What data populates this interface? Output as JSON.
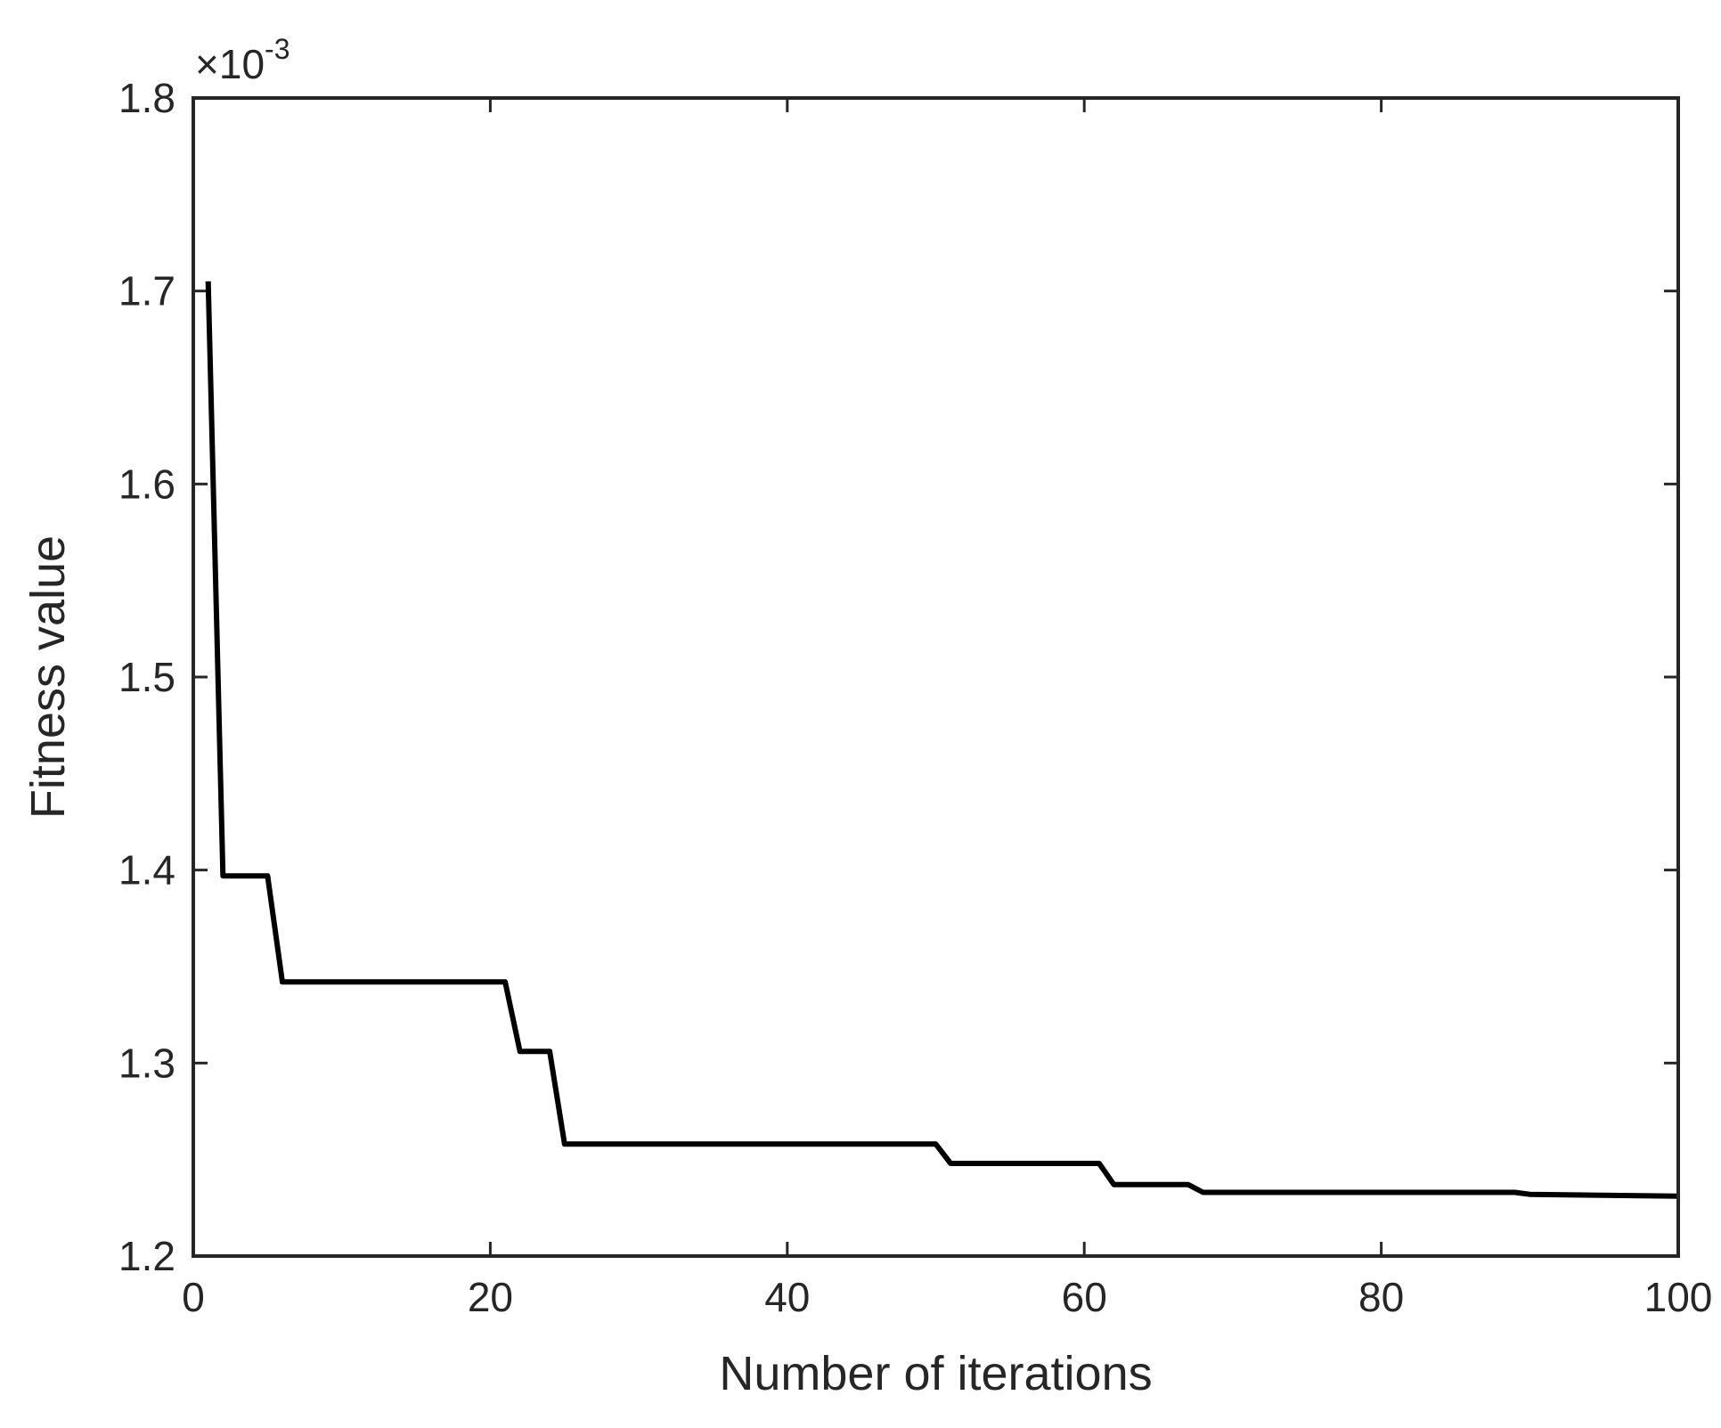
{
  "chart_data": {
    "type": "line",
    "title": "",
    "xlabel": "Number of iterations",
    "ylabel": "Fitness value",
    "xlim": [
      0,
      100
    ],
    "ylim": [
      1.2,
      1.8
    ],
    "x_ticks": [
      0,
      20,
      40,
      60,
      80,
      100
    ],
    "y_ticks": [
      1.2,
      1.3,
      1.4,
      1.5,
      1.6,
      1.7,
      1.8
    ],
    "x_tick_labels": [
      "0",
      "20",
      "40",
      "60",
      "80",
      "100"
    ],
    "y_tick_labels": [
      "1.2",
      "1.3",
      "1.4",
      "1.5",
      "1.6",
      "1.7",
      "1.8"
    ],
    "y_multiplier": {
      "base": "×10",
      "exponent": "-3"
    },
    "grid": false,
    "legend": "none",
    "series": [
      {
        "color": "#000000",
        "x": [
          1,
          2,
          5,
          6,
          21,
          22,
          24,
          25,
          50,
          51,
          61,
          62,
          67,
          68,
          89,
          90,
          100
        ],
        "y": [
          1.705,
          1.397,
          1.397,
          1.342,
          1.342,
          1.306,
          1.306,
          1.258,
          1.258,
          1.248,
          1.248,
          1.237,
          1.237,
          1.233,
          1.233,
          1.232,
          1.231
        ]
      }
    ]
  }
}
